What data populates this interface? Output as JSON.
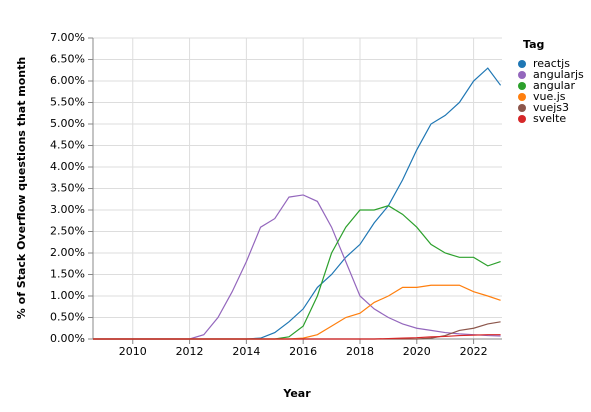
{
  "chart_data": {
    "type": "line",
    "x_label": "Year",
    "y_label": "% of Stack Overflow questions that month",
    "legend_title": "Tag",
    "legend_position": "right",
    "grid": true,
    "x": [
      2008.6,
      2009.5,
      2010.5,
      2011.5,
      2012,
      2012.5,
      2013,
      2013.5,
      2014,
      2014.5,
      2015,
      2015.5,
      2016,
      2016.5,
      2017,
      2017.5,
      2018,
      2018.5,
      2019,
      2019.5,
      2020,
      2020.5,
      2021,
      2021.5,
      2022,
      2022.5,
      2022.95
    ],
    "xlim": [
      2008.6,
      2023
    ],
    "xticks": [
      2010,
      2012,
      2014,
      2016,
      2018,
      2020,
      2022
    ],
    "ylim": [
      0,
      7
    ],
    "yticks": [
      {
        "value": 0,
        "label": "0.00%"
      },
      {
        "value": 0.5,
        "label": "0.50%"
      },
      {
        "value": 1,
        "label": "1.00%"
      },
      {
        "value": 1.5,
        "label": "1.50%"
      },
      {
        "value": 2,
        "label": "2.00%"
      },
      {
        "value": 2.5,
        "label": "2.50%"
      },
      {
        "value": 3,
        "label": "3.00%"
      },
      {
        "value": 3.5,
        "label": "3.50%"
      },
      {
        "value": 4,
        "label": "4.00%"
      },
      {
        "value": 4.5,
        "label": "4.50%"
      },
      {
        "value": 5,
        "label": "5.00%"
      },
      {
        "value": 5.5,
        "label": "5.50%"
      },
      {
        "value": 6,
        "label": "6.00%"
      },
      {
        "value": 6.5,
        "label": "6.50%"
      },
      {
        "value": 7,
        "label": "7.00%"
      }
    ],
    "series": [
      {
        "name": "reactjs",
        "color": "#1f77b4",
        "values": [
          0,
          0,
          0,
          0,
          0,
          0,
          0,
          0,
          0,
          0.02,
          0.15,
          0.4,
          0.7,
          1.2,
          1.5,
          1.9,
          2.2,
          2.7,
          3.1,
          3.7,
          4.4,
          5.0,
          5.2,
          5.5,
          6.0,
          6.3,
          5.9
        ]
      },
      {
        "name": "angularjs",
        "color": "#9467bd",
        "values": [
          0,
          0,
          0,
          0,
          0,
          0.1,
          0.5,
          1.1,
          1.8,
          2.6,
          2.8,
          3.3,
          3.35,
          3.2,
          2.6,
          1.8,
          1.0,
          0.7,
          0.5,
          0.35,
          0.25,
          0.2,
          0.15,
          0.12,
          0.1,
          0.08,
          0.07
        ]
      },
      {
        "name": "angular",
        "color": "#2ca02c",
        "values": [
          0,
          0,
          0,
          0,
          0,
          0,
          0,
          0,
          0,
          0,
          0,
          0.05,
          0.3,
          1.0,
          2.0,
          2.6,
          3.0,
          3.0,
          3.1,
          2.9,
          2.6,
          2.2,
          2.0,
          1.9,
          1.9,
          1.7,
          1.8
        ]
      },
      {
        "name": "vue.js",
        "color": "#ff7f0e",
        "values": [
          0,
          0,
          0,
          0,
          0,
          0,
          0,
          0,
          0,
          0,
          0,
          0,
          0.02,
          0.1,
          0.3,
          0.5,
          0.6,
          0.85,
          1.0,
          1.2,
          1.2,
          1.25,
          1.25,
          1.25,
          1.1,
          1.0,
          0.9
        ]
      },
      {
        "name": "vuejs3",
        "color": "#8c564b",
        "values": [
          0,
          0,
          0,
          0,
          0,
          0,
          0,
          0,
          0,
          0,
          0,
          0,
          0,
          0,
          0,
          0,
          0,
          0,
          0,
          0,
          0,
          0.02,
          0.08,
          0.2,
          0.25,
          0.35,
          0.4
        ]
      },
      {
        "name": "svelte",
        "color": "#d62728",
        "values": [
          0,
          0,
          0,
          0,
          0,
          0,
          0,
          0,
          0,
          0,
          0,
          0,
          0,
          0,
          0,
          0,
          0,
          0,
          0.01,
          0.02,
          0.03,
          0.05,
          0.06,
          0.08,
          0.09,
          0.1,
          0.1
        ]
      }
    ]
  }
}
